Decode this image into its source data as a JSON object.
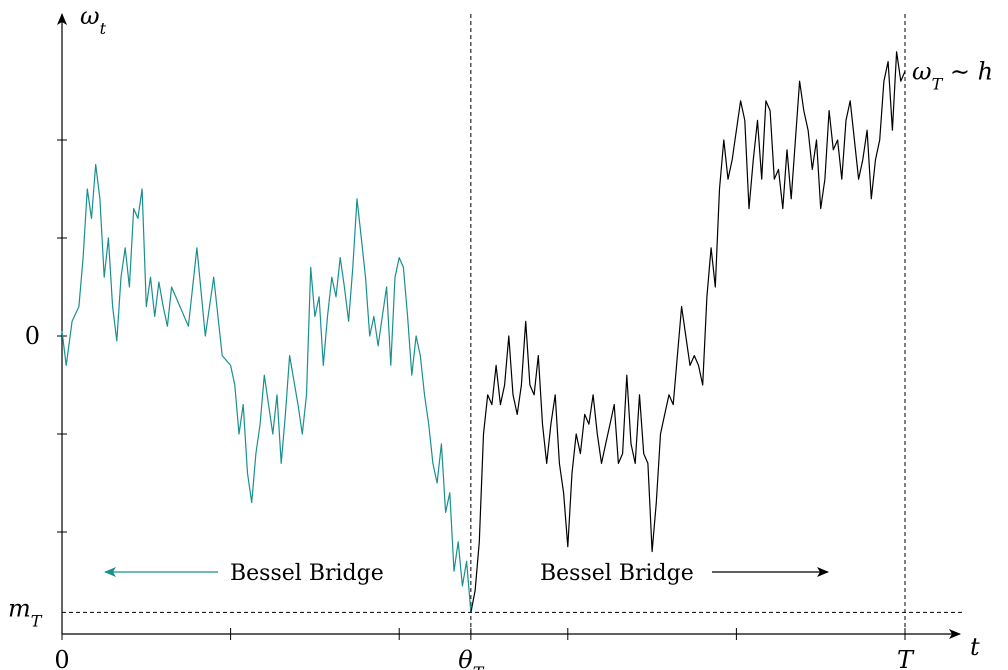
{
  "chart_data": {
    "type": "line",
    "title": "",
    "xlabel": "t",
    "ylabel": "ω_t",
    "xlim": [
      0,
      1
    ],
    "ylim": [
      -3,
      3.3
    ],
    "x_ticks": [
      {
        "value": 0,
        "label": "0"
      },
      {
        "value": 0.2,
        "label": ""
      },
      {
        "value": 0.4,
        "label": ""
      },
      {
        "value": 0.485,
        "label": "θ_T"
      },
      {
        "value": 0.6,
        "label": ""
      },
      {
        "value": 0.8,
        "label": ""
      },
      {
        "value": 1.0,
        "label": "T"
      }
    ],
    "y_ticks": [
      {
        "value": 2,
        "label": ""
      },
      {
        "value": 1,
        "label": ""
      },
      {
        "value": 0,
        "label": "0"
      },
      {
        "value": -1,
        "label": ""
      },
      {
        "value": -2,
        "label": ""
      }
    ],
    "reference_lines": {
      "min_level": {
        "value": -2.82,
        "label": "m_T"
      },
      "min_time": {
        "value": 0.485
      },
      "end_time": {
        "value": 1.0
      }
    },
    "end_label": "ω_T ∼ h",
    "annotations": [
      {
        "text": "Bessel Bridge",
        "arrow": "left",
        "color": "#1a8f8f"
      },
      {
        "text": "Bessel Bridge",
        "arrow": "right",
        "color": "#000000"
      }
    ],
    "series": [
      {
        "color": "#1a8f8f",
        "x": [
          0,
          0.005,
          0.012,
          0.02,
          0.025,
          0.03,
          0.035,
          0.04,
          0.045,
          0.05,
          0.055,
          0.06,
          0.065,
          0.07,
          0.075,
          0.08,
          0.085,
          0.09,
          0.095,
          0.1,
          0.105,
          0.11,
          0.115,
          0.12,
          0.125,
          0.13,
          0.14,
          0.15,
          0.16,
          0.17,
          0.18,
          0.19,
          0.2,
          0.205,
          0.21,
          0.215,
          0.22,
          0.225,
          0.23,
          0.235,
          0.24,
          0.25,
          0.255,
          0.26,
          0.265,
          0.27,
          0.28,
          0.285,
          0.29,
          0.295,
          0.3,
          0.305,
          0.31,
          0.315,
          0.32,
          0.325,
          0.33,
          0.335,
          0.34,
          0.345,
          0.35,
          0.355,
          0.36,
          0.365,
          0.37,
          0.375,
          0.38,
          0.385,
          0.39,
          0.395,
          0.4,
          0.405,
          0.41,
          0.415,
          0.42,
          0.425,
          0.43,
          0.435,
          0.44,
          0.445,
          0.45,
          0.455,
          0.46,
          0.465,
          0.47,
          0.475,
          0.48,
          0.485
        ],
        "y": [
          0.05,
          -0.3,
          0.15,
          0.3,
          0.8,
          1.5,
          1.2,
          1.75,
          1.4,
          0.6,
          1.0,
          0.3,
          -0.05,
          0.6,
          0.9,
          0.5,
          1.3,
          1.2,
          1.5,
          0.3,
          0.6,
          0.2,
          0.55,
          0.3,
          0.1,
          0.5,
          0.3,
          0.1,
          0.9,
          0.0,
          0.6,
          -0.2,
          -0.3,
          -0.5,
          -1.0,
          -0.7,
          -1.4,
          -1.7,
          -1.2,
          -0.9,
          -0.4,
          -1.0,
          -0.6,
          -1.3,
          -0.8,
          -0.2,
          -0.7,
          -1.0,
          -0.6,
          0.7,
          0.2,
          0.4,
          -0.3,
          0.2,
          0.6,
          0.4,
          0.8,
          0.5,
          0.15,
          0.7,
          1.4,
          1.0,
          0.6,
          0.0,
          0.2,
          -0.1,
          0.2,
          0.5,
          -0.3,
          0.6,
          0.8,
          0.7,
          0.2,
          -0.4,
          0.0,
          -0.2,
          -0.6,
          -0.9,
          -1.3,
          -1.5,
          -1.1,
          -1.8,
          -1.6,
          -2.4,
          -2.1,
          -2.55,
          -2.3,
          -2.82
        ]
      },
      {
        "color": "#000000",
        "x": [
          0.485,
          0.49,
          0.495,
          0.5,
          0.505,
          0.51,
          0.515,
          0.52,
          0.525,
          0.53,
          0.535,
          0.54,
          0.545,
          0.55,
          0.555,
          0.56,
          0.565,
          0.57,
          0.575,
          0.58,
          0.585,
          0.59,
          0.595,
          0.6,
          0.605,
          0.61,
          0.615,
          0.62,
          0.625,
          0.63,
          0.635,
          0.64,
          0.645,
          0.65,
          0.655,
          0.66,
          0.665,
          0.67,
          0.675,
          0.68,
          0.685,
          0.69,
          0.695,
          0.7,
          0.705,
          0.71,
          0.715,
          0.72,
          0.725,
          0.73,
          0.735,
          0.74,
          0.745,
          0.75,
          0.755,
          0.76,
          0.765,
          0.77,
          0.775,
          0.78,
          0.785,
          0.79,
          0.795,
          0.8,
          0.805,
          0.81,
          0.815,
          0.82,
          0.825,
          0.83,
          0.835,
          0.84,
          0.845,
          0.85,
          0.855,
          0.86,
          0.865,
          0.87,
          0.875,
          0.88,
          0.885,
          0.89,
          0.895,
          0.9,
          0.905,
          0.91,
          0.915,
          0.92,
          0.925,
          0.93,
          0.935,
          0.94,
          0.945,
          0.95,
          0.955,
          0.96,
          0.965,
          0.97,
          0.975,
          0.98,
          0.985,
          0.99,
          0.995,
          1.0
        ],
        "y": [
          -2.82,
          -2.6,
          -2.1,
          -1.0,
          -0.6,
          -0.7,
          -0.3,
          -0.7,
          -0.5,
          0.0,
          -0.6,
          -0.8,
          -0.5,
          0.15,
          -0.5,
          -0.6,
          -0.2,
          -0.9,
          -1.3,
          -0.9,
          -0.6,
          -1.3,
          -1.6,
          -2.15,
          -1.4,
          -1.0,
          -1.2,
          -0.8,
          -0.9,
          -0.6,
          -1.0,
          -1.3,
          -1.1,
          -0.9,
          -0.7,
          -1.3,
          -1.2,
          -0.4,
          -1.1,
          -1.3,
          -0.6,
          -1.2,
          -1.3,
          -2.2,
          -1.7,
          -1.0,
          -0.8,
          -0.6,
          -0.7,
          -0.2,
          0.3,
          0.0,
          -0.3,
          -0.2,
          -0.3,
          -0.5,
          0.4,
          0.9,
          0.5,
          1.5,
          2.0,
          1.6,
          1.8,
          2.1,
          2.4,
          2.2,
          1.3,
          1.8,
          2.2,
          1.6,
          2.4,
          2.3,
          1.6,
          1.7,
          1.3,
          1.9,
          1.4,
          2.0,
          2.6,
          2.3,
          2.1,
          1.7,
          2.0,
          1.3,
          1.6,
          2.3,
          1.9,
          2.0,
          1.6,
          2.2,
          2.4,
          2.0,
          1.6,
          1.8,
          2.1,
          1.4,
          1.8,
          2.0,
          2.6,
          2.8,
          2.1,
          2.9,
          2.6,
          2.7
        ]
      }
    ]
  }
}
